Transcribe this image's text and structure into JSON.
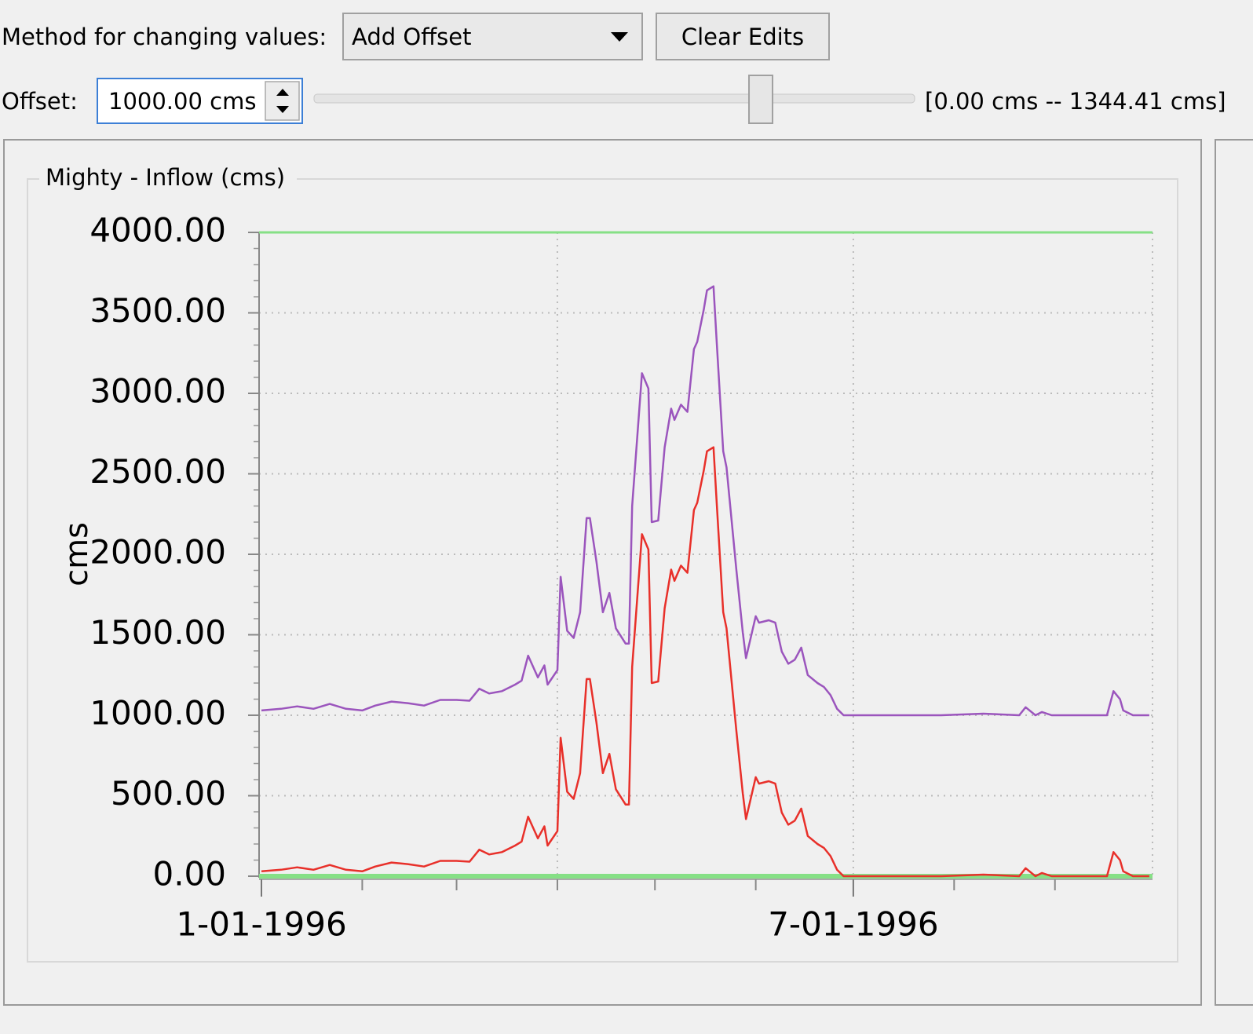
{
  "controls": {
    "method_label": "Method for changing values:",
    "method_value": "Add Offset",
    "clear_button": "Clear Edits",
    "offset_label": "Offset:",
    "offset_value": "1000.00 cms",
    "range_label": "[0.00 cms -- 1344.41 cms]",
    "slider": {
      "min": 0,
      "max": 1344.41,
      "value": 1000
    }
  },
  "chart_data": {
    "type": "line",
    "title": "Mighty - Inflow (cms)",
    "y_label": "cms",
    "x": [
      "1-01-1996",
      "1-07-1996",
      "1-12-1996",
      "1-17-1996",
      "1-22-1996",
      "1-27-1996",
      "2-01-1996",
      "2-05-1996",
      "2-10-1996",
      "2-15-1996",
      "2-20-1996",
      "2-25-1996",
      "3-01-1996",
      "3-05-1996",
      "3-08-1996",
      "3-11-1996",
      "3-15-1996",
      "3-19-1996",
      "3-21-1996",
      "3-23-1996",
      "3-26-1996",
      "3-28-1996",
      "3-29-1996",
      "4-01-1996",
      "4-02-1996",
      "4-04-1996",
      "4-06-1996",
      "4-08-1996",
      "4-10-1996",
      "4-11-1996",
      "4-13-1996",
      "4-15-1996",
      "4-17-1996",
      "4-19-1996",
      "4-22-1996",
      "4-23-1996",
      "4-24-1996",
      "4-27-1996",
      "4-29-1996",
      "4-30-1996",
      "5-02-1996",
      "5-04-1996",
      "5-06-1996",
      "5-07-1996",
      "5-09-1996",
      "5-11-1996",
      "5-13-1996",
      "5-14-1996",
      "5-16-1996",
      "5-17-1996",
      "5-19-1996",
      "5-20-1996",
      "5-22-1996",
      "5-23-1996",
      "5-26-1996",
      "5-28-1996",
      "5-29-1996",
      "6-01-1996",
      "6-02-1996",
      "6-05-1996",
      "6-07-1996",
      "6-09-1996",
      "6-11-1996",
      "6-13-1996",
      "6-15-1996",
      "6-17-1996",
      "6-20-1996",
      "6-22-1996",
      "6-24-1996",
      "6-26-1996",
      "6-28-1996",
      "7-04-1996",
      "7-16-1996",
      "7-28-1996",
      "8-10-1996",
      "8-21-1996",
      "8-23-1996",
      "8-26-1996",
      "8-28-1996",
      "8-31-1996",
      "9-09-1996",
      "9-17-1996",
      "9-19-1996",
      "9-21-1996",
      "9-22-1996",
      "9-25-1996",
      "9-30-1996"
    ],
    "series": [
      {
        "color": "#9b55bd",
        "values": [
          1030,
          1040,
          1055,
          1040,
          1070,
          1040,
          1030,
          1060,
          1085,
          1075,
          1060,
          1095,
          1095,
          1090,
          1165,
          1135,
          1150,
          1190,
          1215,
          1370,
          1235,
          1310,
          1190,
          1280,
          1860,
          1525,
          1480,
          1640,
          2225,
          2225,
          1955,
          1640,
          1760,
          1540,
          1445,
          1445,
          2300,
          3125,
          3030,
          2200,
          2210,
          2665,
          2905,
          2835,
          2930,
          2885,
          3275,
          3320,
          3520,
          3640,
          3665,
          3320,
          2640,
          2540,
          1910,
          1515,
          1355,
          1615,
          1575,
          1590,
          1575,
          1395,
          1320,
          1345,
          1420,
          1250,
          1200,
          1175,
          1125,
          1040,
          1000,
          1000,
          1000,
          1000,
          1010,
          1000,
          1050,
          1000,
          1020,
          1000,
          1000,
          1000,
          1150,
          1100,
          1030,
          1000,
          1000
        ]
      },
      {
        "color": "#e8302a",
        "values": [
          30,
          40,
          55,
          40,
          70,
          40,
          30,
          60,
          85,
          75,
          60,
          95,
          95,
          90,
          165,
          135,
          150,
          190,
          215,
          370,
          235,
          310,
          190,
          280,
          860,
          525,
          480,
          640,
          1225,
          1225,
          955,
          640,
          760,
          540,
          445,
          445,
          1300,
          2125,
          2030,
          1200,
          1210,
          1665,
          1905,
          1835,
          1930,
          1885,
          2275,
          2320,
          2520,
          2640,
          2665,
          2320,
          1640,
          1540,
          910,
          515,
          355,
          615,
          575,
          590,
          575,
          395,
          320,
          345,
          420,
          250,
          200,
          175,
          125,
          40,
          0,
          0,
          0,
          0,
          10,
          0,
          50,
          0,
          20,
          0,
          0,
          0,
          150,
          100,
          30,
          0,
          0
        ]
      }
    ],
    "xlim": [
      "1-01-1996",
      "10-01-1996"
    ],
    "xticks": [
      "1-01-1996",
      "7-01-1996"
    ],
    "x_gridlines": [
      "4-01-1996",
      "7-01-1996",
      "10-01-1996"
    ],
    "x_minor_ticks": [
      "2-01-1996",
      "3-01-1996",
      "4-01-1996",
      "5-01-1996",
      "6-01-1996",
      "8-01-1996",
      "9-01-1996"
    ],
    "ylim": [
      0,
      4000
    ],
    "yticks": [
      {
        "value": 0,
        "label": "0.00"
      },
      {
        "value": 500,
        "label": "500.00"
      },
      {
        "value": 1000,
        "label": "1000.00"
      },
      {
        "value": 1500,
        "label": "1500.00"
      },
      {
        "value": 2000,
        "label": "2000.00"
      },
      {
        "value": 2500,
        "label": "2500.00"
      },
      {
        "value": 3000,
        "label": "3000.00"
      },
      {
        "value": 3500,
        "label": "3500.00"
      },
      {
        "value": 4000,
        "label": "4000.00"
      }
    ],
    "y_minor_step": 100,
    "grid": true,
    "limit_lines": {
      "color": "#86e086",
      "values": [
        0,
        4000
      ]
    }
  }
}
